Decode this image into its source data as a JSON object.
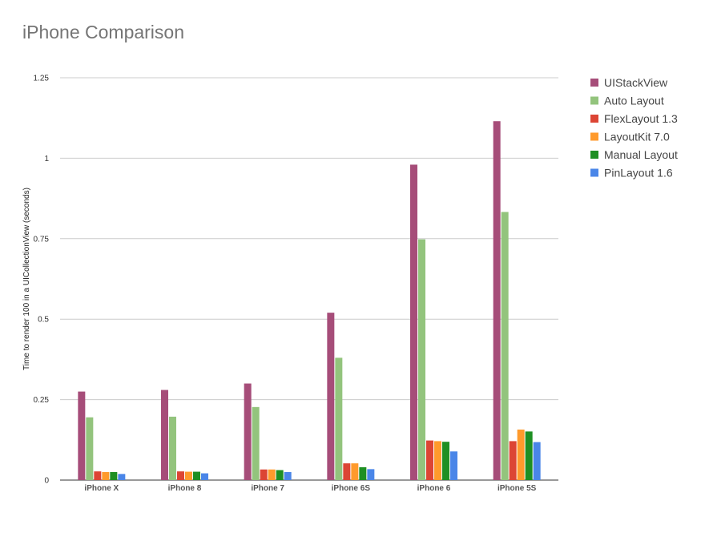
{
  "chart_data": {
    "type": "bar",
    "title": "iPhone Comparison",
    "xlabel": "",
    "ylabel": "Time to  render 100 in a UICollectionView (seconds)",
    "ylim": [
      0,
      1.25
    ],
    "yticks": [
      {
        "value": 0,
        "label": "0"
      },
      {
        "value": 0.25,
        "label": "0.25"
      },
      {
        "value": 0.5,
        "label": "0.5"
      },
      {
        "value": 0.75,
        "label": "0.75"
      },
      {
        "value": 1,
        "label": "1"
      },
      {
        "value": 1.25,
        "label": "1.25"
      }
    ],
    "grid": true,
    "legend_position": "right",
    "categories": [
      "iPhone X",
      "iPhone 8",
      "iPhone 7",
      "iPhone 6S",
      "iPhone 6",
      "iPhone 5S"
    ],
    "series": [
      {
        "name": "UIStackView",
        "color": "#a64d79",
        "values": [
          0.275,
          0.28,
          0.3,
          0.52,
          0.98,
          1.115
        ]
      },
      {
        "name": "Auto Layout",
        "color": "#93c47d",
        "values": [
          0.195,
          0.197,
          0.227,
          0.38,
          0.748,
          0.833
        ]
      },
      {
        "name": "FlexLayout 1.3",
        "color": "#dc4534",
        "values": [
          0.027,
          0.027,
          0.033,
          0.052,
          0.123,
          0.121
        ]
      },
      {
        "name": "LayoutKit 7.0",
        "color": "#ff9a2c",
        "values": [
          0.025,
          0.026,
          0.033,
          0.052,
          0.121,
          0.157
        ]
      },
      {
        "name": "Manual Layout",
        "color": "#1e8f23",
        "values": [
          0.025,
          0.026,
          0.031,
          0.04,
          0.119,
          0.151
        ]
      },
      {
        "name": "PinLayout 1.6",
        "color": "#4a86e8",
        "values": [
          0.019,
          0.021,
          0.025,
          0.034,
          0.089,
          0.118
        ]
      }
    ]
  }
}
